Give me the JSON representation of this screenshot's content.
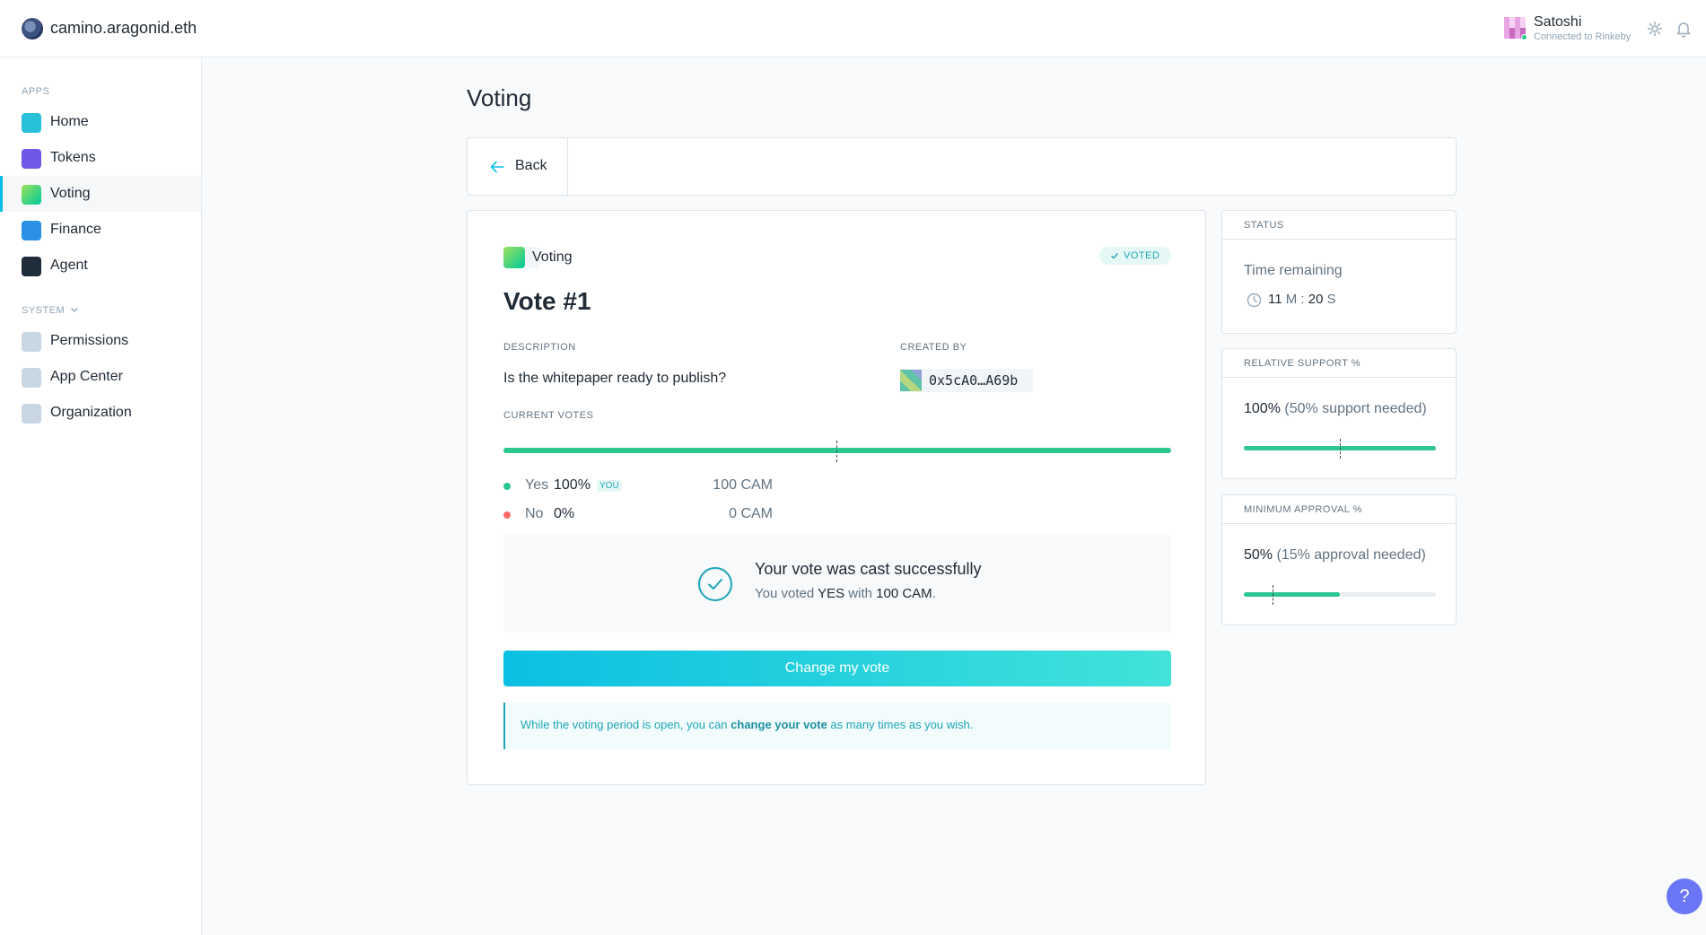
{
  "header": {
    "org_name": "camino.aragonid.eth",
    "user_name": "Satoshi",
    "user_network": "Connected to Rinkeby"
  },
  "sidebar": {
    "apps_label": "APPS",
    "system_label": "SYSTEM",
    "apps": [
      {
        "label": "Home",
        "icon": "home-icon",
        "color": "#29c1d9"
      },
      {
        "label": "Tokens",
        "icon": "tokens-icon",
        "color": "#7157e8"
      },
      {
        "label": "Voting",
        "icon": "voting-icon",
        "color": "#5bd06f"
      },
      {
        "label": "Finance",
        "icon": "finance-icon",
        "color": "#2a91e6"
      },
      {
        "label": "Agent",
        "icon": "agent-icon",
        "color": "#1f2c3a"
      }
    ],
    "system": [
      {
        "label": "Permissions",
        "icon": "permissions-icon",
        "color": "#c9d6e3"
      },
      {
        "label": "App Center",
        "icon": "app-center-icon",
        "color": "#c9d6e3"
      },
      {
        "label": "Organization",
        "icon": "organization-icon",
        "color": "#c9d6e3"
      }
    ],
    "active": "Voting"
  },
  "main": {
    "page_title": "Voting",
    "back_label": "Back",
    "app_badge": "Voting",
    "voted_badge": "VOTED",
    "vote_title": "Vote #1",
    "description_label": "DESCRIPTION",
    "description": "Is the whitepaper ready to publish?",
    "created_by_label": "CREATED BY",
    "creator_address": "0x5cA0…A69b",
    "current_votes_label": "CURRENT VOTES",
    "votes_fraction": 1.0,
    "yes": {
      "label": "Yes",
      "pct": "100%",
      "you": "YOU",
      "amount": "100 CAM"
    },
    "no": {
      "label": "No",
      "pct": "0%",
      "amount": "0 CAM"
    },
    "success_title": "Your vote was cast successfully",
    "success_sub_prefix": "You voted",
    "success_choice": "YES",
    "success_with": "with",
    "success_amount": "100 CAM",
    "change_button": "Change my vote",
    "info_prefix": "While the voting period is open, you can",
    "info_link": "change your vote",
    "info_suffix": "as many times as you wish."
  },
  "status": {
    "status_title": "STATUS",
    "time_label": "Time remaining",
    "time_minutes": "11",
    "time_m_unit": "M",
    "time_seconds": "20",
    "time_s_unit": "S",
    "support_title": "RELATIVE SUPPORT %",
    "support_value": "100%",
    "support_needed": "(50% support needed)",
    "support_fraction": 1.0,
    "approval_title": "MINIMUM APPROVAL %",
    "approval_value": "50%",
    "approval_needed": "(15% approval needed)",
    "approval_fraction": 0.5
  },
  "colors": {
    "accent": "#08bee5",
    "yes": "#2cc68f",
    "no": "#ff6969"
  },
  "help_label": "?"
}
